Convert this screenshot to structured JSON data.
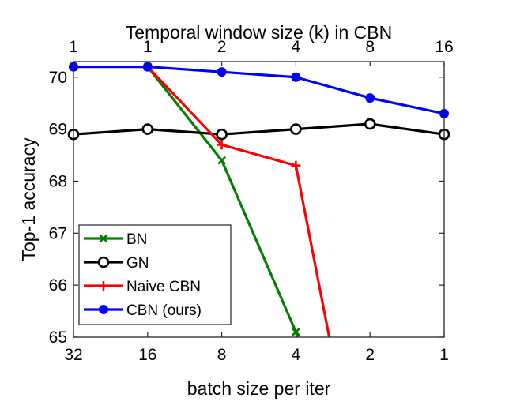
{
  "chart_data": {
    "type": "line",
    "title": "",
    "top_xlabel": "Temporal window size (k) in CBN",
    "xlabel": "batch size per iter",
    "ylabel": "Top-1 accuracy",
    "bottom_tick_labels": [
      "32",
      "16",
      "8",
      "4",
      "2",
      "1"
    ],
    "top_tick_labels": [
      "1",
      "1",
      "2",
      "4",
      "8",
      "16"
    ],
    "x_positions": [
      0,
      1,
      2,
      3,
      4,
      5
    ],
    "ylim": [
      65,
      70.3
    ],
    "yticks": [
      65,
      66,
      67,
      68,
      69,
      70
    ],
    "legend_position": "bottom-left",
    "series": [
      {
        "name": "BN",
        "color": "#008000",
        "marker": "x",
        "points": [
          [
            0,
            70.2
          ],
          [
            1,
            70.2
          ],
          [
            2,
            68.4
          ],
          [
            3,
            65.1
          ],
          [
            3.05,
            64.9
          ]
        ]
      },
      {
        "name": "GN",
        "color": "#000000",
        "marker": "circle-open",
        "points": [
          [
            0,
            68.9
          ],
          [
            1,
            69.0
          ],
          [
            2,
            68.9
          ],
          [
            3,
            69.0
          ],
          [
            4,
            69.1
          ],
          [
            5,
            68.9
          ]
        ]
      },
      {
        "name": "Naive CBN",
        "color": "#ff0000",
        "marker": "plus",
        "points": [
          [
            0,
            70.2
          ],
          [
            1,
            70.2
          ],
          [
            2,
            68.7
          ],
          [
            3,
            68.3
          ],
          [
            3.45,
            65.0
          ]
        ]
      },
      {
        "name": "CBN (ours)",
        "color": "#0000ff",
        "marker": "circle-filled",
        "points": [
          [
            0,
            70.2
          ],
          [
            1,
            70.2
          ],
          [
            2,
            70.1
          ],
          [
            3,
            70.0
          ],
          [
            4,
            69.6
          ],
          [
            5,
            69.3
          ]
        ]
      }
    ]
  }
}
